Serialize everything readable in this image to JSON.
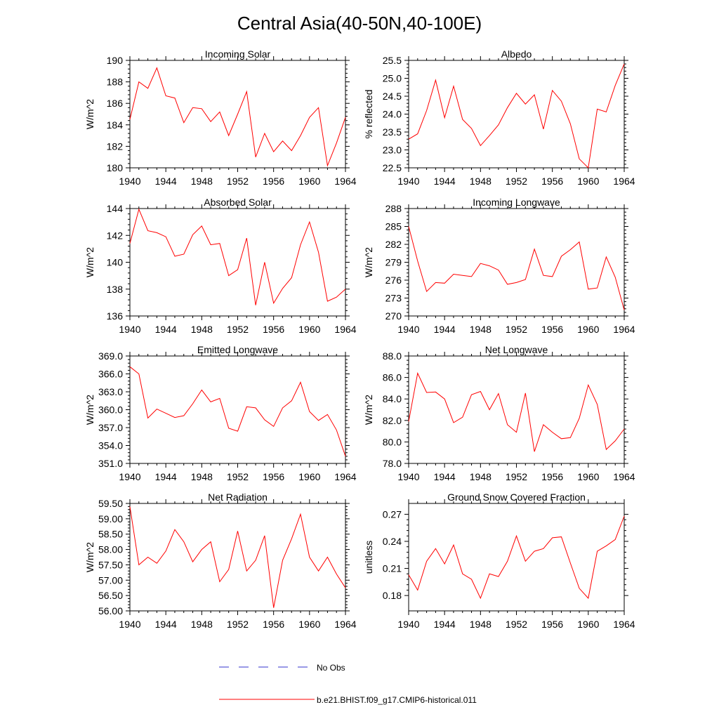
{
  "title": "Central Asia(40-50N,40-100E)",
  "colors": {
    "model": "#ff0000",
    "obs": "#3333cc",
    "axis": "#000000"
  },
  "legend": {
    "placement": "bottom-center",
    "obs_label": "No Obs",
    "model_label": "b.e21.BHIST.f09_g17.CMIP6-historical.011"
  },
  "chart_data": [
    {
      "type": "line",
      "title": "Incoming Solar",
      "ylabel": "W/m^2",
      "xlim": [
        1940,
        1964
      ],
      "ylim": [
        180,
        190
      ],
      "yticks": [
        180,
        182,
        184,
        186,
        188,
        190
      ],
      "ytick_labels": [
        "180",
        "182",
        "184",
        "186",
        "188",
        "190"
      ],
      "xticks": [
        1940,
        1944,
        1948,
        1952,
        1956,
        1960,
        1964
      ],
      "xtick_labels": [
        "1940",
        "1944",
        "1948",
        "1952",
        "1956",
        "1960",
        "1964"
      ],
      "x": [
        1940,
        1941,
        1942,
        1943,
        1944,
        1945,
        1946,
        1947,
        1948,
        1949,
        1950,
        1951,
        1952,
        1953,
        1954,
        1955,
        1956,
        1957,
        1958,
        1959,
        1960,
        1961,
        1962,
        1963,
        1964
      ],
      "series": [
        {
          "name": "b.e21.BHIST.f09_g17.CMIP6-historical.011",
          "values": [
            184.5,
            188.0,
            187.4,
            189.3,
            186.7,
            186.5,
            184.2,
            185.6,
            185.5,
            184.3,
            185.2,
            183.0,
            185.0,
            187.1,
            181.0,
            183.2,
            181.5,
            182.5,
            181.6,
            183.0,
            184.7,
            185.6,
            180.2,
            182.3,
            184.7
          ]
        }
      ]
    },
    {
      "type": "line",
      "title": "Albedo",
      "ylabel": "% reflected",
      "xlim": [
        1940,
        1964
      ],
      "ylim": [
        22.5,
        25.5
      ],
      "yticks": [
        22.5,
        23.0,
        23.5,
        24.0,
        24.5,
        25.0,
        25.5
      ],
      "ytick_labels": [
        "22.5",
        "23.0",
        "23.5",
        "24.0",
        "24.5",
        "25.0",
        "25.5"
      ],
      "xticks": [
        1940,
        1944,
        1948,
        1952,
        1956,
        1960,
        1964
      ],
      "xtick_labels": [
        "1940",
        "1944",
        "1948",
        "1952",
        "1956",
        "1960",
        "1964"
      ],
      "x": [
        1940,
        1941,
        1942,
        1943,
        1944,
        1945,
        1946,
        1947,
        1948,
        1949,
        1950,
        1951,
        1952,
        1953,
        1954,
        1955,
        1956,
        1957,
        1958,
        1959,
        1960,
        1961,
        1962,
        1963,
        1964
      ],
      "series": [
        {
          "name": "b.e21.BHIST.f09_g17.CMIP6-historical.011",
          "values": [
            23.3,
            23.45,
            24.1,
            24.95,
            23.9,
            24.78,
            23.85,
            23.6,
            23.12,
            23.4,
            23.7,
            24.18,
            24.58,
            24.28,
            24.54,
            23.58,
            24.66,
            24.36,
            23.73,
            22.75,
            22.5,
            24.14,
            24.06,
            24.8,
            25.4
          ]
        }
      ]
    },
    {
      "type": "line",
      "title": "Absorbed Solar",
      "ylabel": "W/m^2",
      "xlim": [
        1940,
        1964
      ],
      "ylim": [
        136,
        144
      ],
      "yticks": [
        136,
        138,
        140,
        142,
        144
      ],
      "ytick_labels": [
        "136",
        "138",
        "140",
        "142",
        "144"
      ],
      "xticks": [
        1940,
        1944,
        1948,
        1952,
        1956,
        1960,
        1964
      ],
      "xtick_labels": [
        "1940",
        "1944",
        "1948",
        "1952",
        "1956",
        "1960",
        "1964"
      ],
      "x": [
        1940,
        1941,
        1942,
        1943,
        1944,
        1945,
        1946,
        1947,
        1948,
        1949,
        1950,
        1951,
        1952,
        1953,
        1954,
        1955,
        1956,
        1957,
        1958,
        1959,
        1960,
        1961,
        1962,
        1963,
        1964
      ],
      "series": [
        {
          "name": "b.e21.BHIST.f09_g17.CMIP6-historical.011",
          "values": [
            141.4,
            143.95,
            142.35,
            142.2,
            141.9,
            140.45,
            140.6,
            142.05,
            142.7,
            141.3,
            141.4,
            139.0,
            139.45,
            141.8,
            136.8,
            140.0,
            136.95,
            138.05,
            138.85,
            141.3,
            143.0,
            140.75,
            137.1,
            137.4,
            138.0
          ]
        }
      ]
    },
    {
      "type": "line",
      "title": "Incoming Longwave",
      "ylabel": "W/m^2",
      "xlim": [
        1940,
        1964
      ],
      "ylim": [
        270,
        288
      ],
      "yticks": [
        270,
        273,
        276,
        279,
        282,
        285,
        288
      ],
      "ytick_labels": [
        "270",
        "273",
        "276",
        "279",
        "282",
        "285",
        "288"
      ],
      "xticks": [
        1940,
        1944,
        1948,
        1952,
        1956,
        1960,
        1964
      ],
      "xtick_labels": [
        "1940",
        "1944",
        "1948",
        "1952",
        "1956",
        "1960",
        "1964"
      ],
      "x": [
        1940,
        1941,
        1942,
        1943,
        1944,
        1945,
        1946,
        1947,
        1948,
        1949,
        1950,
        1951,
        1952,
        1953,
        1954,
        1955,
        1956,
        1957,
        1958,
        1959,
        1960,
        1961,
        1962,
        1963,
        1964
      ],
      "series": [
        {
          "name": "b.e21.BHIST.f09_g17.CMIP6-historical.011",
          "values": [
            285.0,
            279.2,
            274.1,
            275.6,
            275.5,
            277.0,
            276.8,
            276.6,
            278.8,
            278.4,
            277.7,
            275.3,
            275.6,
            276.1,
            281.2,
            276.8,
            276.6,
            280.0,
            281.1,
            282.4,
            274.5,
            274.7,
            279.9,
            276.5,
            271.0
          ]
        }
      ]
    },
    {
      "type": "line",
      "title": "Emitted Longwave",
      "ylabel": "W/m^2",
      "xlim": [
        1940,
        1964
      ],
      "ylim": [
        351.0,
        369.0
      ],
      "yticks": [
        351,
        354,
        357,
        360,
        363,
        366,
        369
      ],
      "ytick_labels": [
        "351.0",
        "354.0",
        "357.0",
        "360.0",
        "363.0",
        "366.0",
        "369.0"
      ],
      "xticks": [
        1940,
        1944,
        1948,
        1952,
        1956,
        1960,
        1964
      ],
      "xtick_labels": [
        "1940",
        "1944",
        "1948",
        "1952",
        "1956",
        "1960",
        "1964"
      ],
      "x": [
        1940,
        1941,
        1942,
        1943,
        1944,
        1945,
        1946,
        1947,
        1948,
        1949,
        1950,
        1951,
        1952,
        1953,
        1954,
        1955,
        1956,
        1957,
        1958,
        1959,
        1960,
        1961,
        1962,
        1963,
        1964
      ],
      "series": [
        {
          "name": "b.e21.BHIST.f09_g17.CMIP6-historical.011",
          "values": [
            367.2,
            366.0,
            358.6,
            360.1,
            359.4,
            358.7,
            359.0,
            361.0,
            363.3,
            361.3,
            361.9,
            356.9,
            356.4,
            360.5,
            360.3,
            358.3,
            357.2,
            360.3,
            361.5,
            364.6,
            359.7,
            358.2,
            359.2,
            356.6,
            352.2
          ]
        }
      ]
    },
    {
      "type": "line",
      "title": "Net Longwave",
      "ylabel": "W/m^2",
      "xlim": [
        1940,
        1964
      ],
      "ylim": [
        78.0,
        88.0
      ],
      "yticks": [
        78,
        80,
        82,
        84,
        86,
        88
      ],
      "ytick_labels": [
        "78.0",
        "80.0",
        "82.0",
        "84.0",
        "86.0",
        "88.0"
      ],
      "xticks": [
        1940,
        1944,
        1948,
        1952,
        1956,
        1960,
        1964
      ],
      "xtick_labels": [
        "1940",
        "1944",
        "1948",
        "1952",
        "1956",
        "1960",
        "1964"
      ],
      "x": [
        1940,
        1941,
        1942,
        1943,
        1944,
        1945,
        1946,
        1947,
        1948,
        1949,
        1950,
        1951,
        1952,
        1953,
        1954,
        1955,
        1956,
        1957,
        1958,
        1959,
        1960,
        1961,
        1962,
        1963,
        1964
      ],
      "series": [
        {
          "name": "b.e21.BHIST.f09_g17.CMIP6-historical.011",
          "values": [
            81.9,
            86.4,
            84.6,
            84.65,
            84.0,
            81.8,
            82.3,
            84.4,
            84.7,
            83.0,
            84.5,
            81.6,
            80.9,
            84.55,
            79.1,
            81.6,
            80.9,
            80.3,
            80.4,
            82.2,
            85.3,
            83.5,
            79.3,
            80.1,
            81.2
          ]
        }
      ]
    },
    {
      "type": "line",
      "title": "Net Radiation",
      "ylabel": "W/m^2",
      "xlim": [
        1940,
        1964
      ],
      "ylim": [
        56.0,
        59.5
      ],
      "yticks": [
        56.0,
        56.5,
        57.0,
        57.5,
        58.0,
        58.5,
        59.0,
        59.5
      ],
      "ytick_labels": [
        "56.00",
        "56.50",
        "57.00",
        "57.50",
        "58.00",
        "58.50",
        "59.00",
        "59.50"
      ],
      "xticks": [
        1940,
        1944,
        1948,
        1952,
        1956,
        1960,
        1964
      ],
      "xtick_labels": [
        "1940",
        "1944",
        "1948",
        "1952",
        "1956",
        "1960",
        "1964"
      ],
      "x": [
        1940,
        1941,
        1942,
        1943,
        1944,
        1945,
        1946,
        1947,
        1948,
        1949,
        1950,
        1951,
        1952,
        1953,
        1954,
        1955,
        1956,
        1957,
        1958,
        1959,
        1960,
        1961,
        1962,
        1963,
        1964
      ],
      "series": [
        {
          "name": "b.e21.BHIST.f09_g17.CMIP6-historical.011",
          "values": [
            59.4,
            57.5,
            57.75,
            57.55,
            57.95,
            58.65,
            58.25,
            57.6,
            58.0,
            58.25,
            56.95,
            57.35,
            58.6,
            57.3,
            57.65,
            58.45,
            56.1,
            57.65,
            58.35,
            59.15,
            57.75,
            57.3,
            57.75,
            57.2,
            56.75
          ]
        }
      ]
    },
    {
      "type": "line",
      "title": "Ground Snow Covered Fraction",
      "ylabel": "unitless",
      "xlim": [
        1940,
        1964
      ],
      "ylim": [
        0.163,
        0.282
      ],
      "yticks": [
        0.18,
        0.21,
        0.24,
        0.27
      ],
      "ytick_labels": [
        "0.18",
        "0.21",
        "0.24",
        "0.27"
      ],
      "xticks": [
        1940,
        1944,
        1948,
        1952,
        1956,
        1960,
        1964
      ],
      "xtick_labels": [
        "1940",
        "1944",
        "1948",
        "1952",
        "1956",
        "1960",
        "1964"
      ],
      "x": [
        1940,
        1941,
        1942,
        1943,
        1944,
        1945,
        1946,
        1947,
        1948,
        1949,
        1950,
        1951,
        1952,
        1953,
        1954,
        1955,
        1956,
        1957,
        1958,
        1959,
        1960,
        1961,
        1962,
        1963,
        1964
      ],
      "series": [
        {
          "name": "b.e21.BHIST.f09_g17.CMIP6-historical.011",
          "values": [
            0.203,
            0.186,
            0.218,
            0.232,
            0.215,
            0.236,
            0.204,
            0.198,
            0.177,
            0.204,
            0.201,
            0.218,
            0.246,
            0.218,
            0.229,
            0.232,
            0.244,
            0.245,
            0.216,
            0.188,
            0.177,
            0.229,
            0.235,
            0.242,
            0.268
          ]
        }
      ]
    }
  ]
}
